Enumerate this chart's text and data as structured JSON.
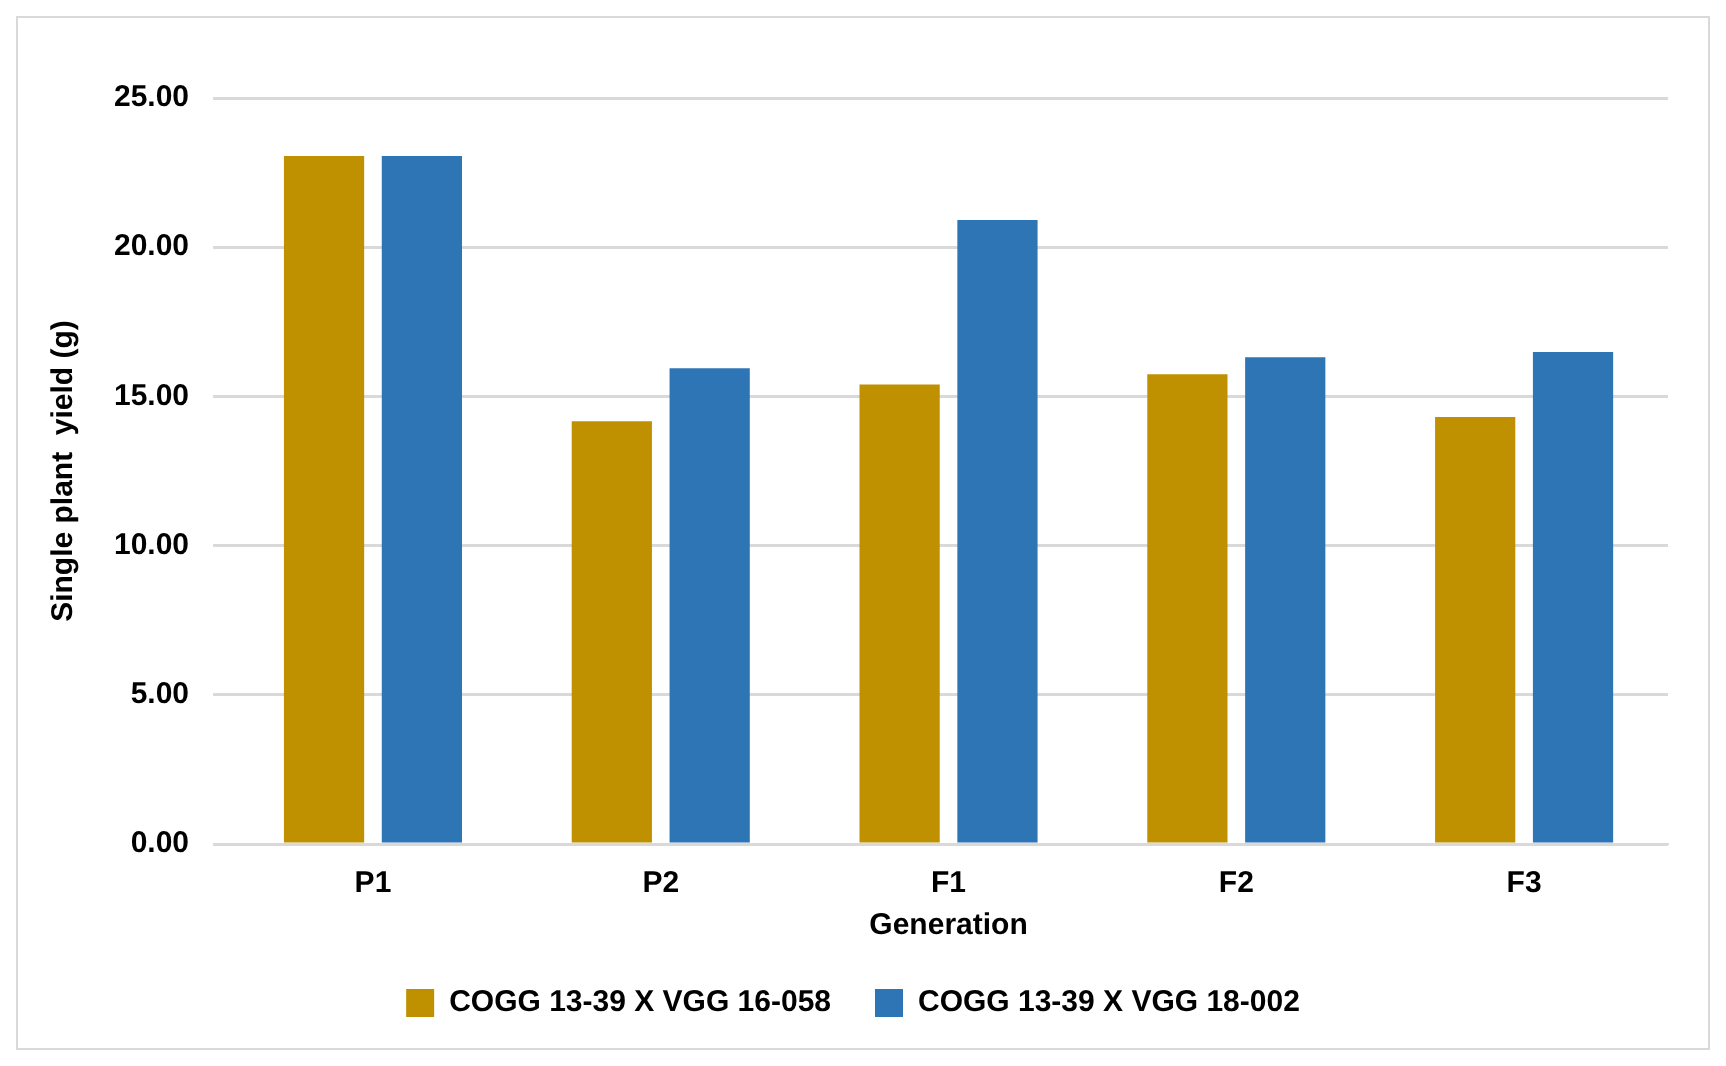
{
  "chart_data": {
    "type": "bar",
    "xlabel": "Generation",
    "ylabel": "Single plant  yield (g)",
    "categories": [
      "P1",
      "P2",
      "F1",
      "F2",
      "F3"
    ],
    "series": [
      {
        "name": "COGG 13-39 X VGG 16-058",
        "color": "#bf9000",
        "values": [
          23.06,
          14.17,
          15.4,
          15.74,
          14.31
        ]
      },
      {
        "name": "COGG 13-39 X VGG 18-002",
        "color": "#2e75b6",
        "values": [
          23.06,
          15.94,
          20.91,
          16.31,
          16.49
        ]
      }
    ],
    "ylim": [
      0,
      25
    ],
    "yticks": [
      {
        "value": 0,
        "label": "0.00"
      },
      {
        "value": 5,
        "label": "5.00"
      },
      {
        "value": 10,
        "label": "10.00"
      },
      {
        "value": 15,
        "label": "15.00"
      },
      {
        "value": 20,
        "label": "20.00"
      },
      {
        "value": 25,
        "label": "25.00"
      }
    ],
    "grid": "y",
    "legend": "bottom"
  }
}
